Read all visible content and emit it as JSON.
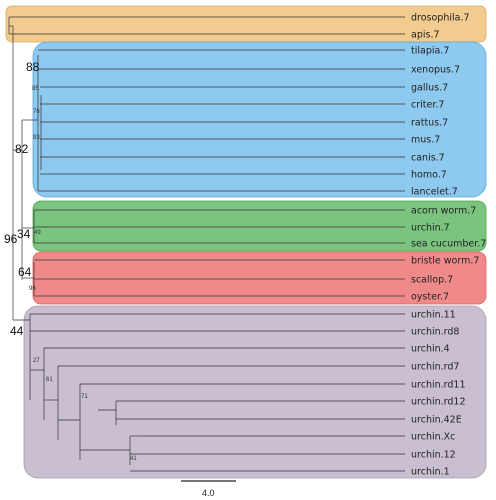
{
  "groups": [
    {
      "id": "insects",
      "color": "#f2cc8f",
      "stroke": "#d9a860"
    },
    {
      "id": "deuterostomes",
      "color": "#8ec9ef",
      "stroke": "#5aa9de"
    },
    {
      "id": "ambulacraria",
      "color": "#7bc47f",
      "stroke": "#4fa654"
    },
    {
      "id": "lophotrochozoa",
      "color": "#f08a8a",
      "stroke": "#e06060"
    },
    {
      "id": "urchin-paralogs",
      "color": "#c9bfd0",
      "stroke": "#a89bb2"
    }
  ],
  "leaves": [
    {
      "label": "drosophila.7",
      "group": "insects"
    },
    {
      "label": "apis.7",
      "group": "insects"
    },
    {
      "label": "tilapia.7",
      "group": "deuterostomes"
    },
    {
      "label": "xenopus.7",
      "group": "deuterostomes"
    },
    {
      "label": "gallus.7",
      "group": "deuterostomes"
    },
    {
      "label": "criter.7",
      "group": "deuterostomes"
    },
    {
      "label": "rattus.7",
      "group": "deuterostomes"
    },
    {
      "label": "mus.7",
      "group": "deuterostomes"
    },
    {
      "label": "canis.7",
      "group": "deuterostomes"
    },
    {
      "label": "homo.7",
      "group": "deuterostomes"
    },
    {
      "label": "lancelet.7",
      "group": "deuterostomes"
    },
    {
      "label": "acorn worm.7",
      "group": "ambulacraria"
    },
    {
      "label": "urchin.7",
      "group": "ambulacraria"
    },
    {
      "label": "sea cucumber.7",
      "group": "ambulacraria"
    },
    {
      "label": "bristle worm.7",
      "group": "lophotrochozoa"
    },
    {
      "label": "scallop.7",
      "group": "lophotrochozoa"
    },
    {
      "label": "oyster.7",
      "group": "lophotrochozoa"
    },
    {
      "label": "urchin.11",
      "group": "urchin-paralogs"
    },
    {
      "label": "urchin.rd8",
      "group": "urchin-paralogs"
    },
    {
      "label": "urchin.4",
      "group": "urchin-paralogs"
    },
    {
      "label": "urchin.rd7",
      "group": "urchin-paralogs"
    },
    {
      "label": "urchin.rd11",
      "group": "urchin-paralogs"
    },
    {
      "label": "urchin.rd12",
      "group": "urchin-paralogs"
    },
    {
      "label": "urchin.42E",
      "group": "urchin-paralogs"
    },
    {
      "label": "urchin.Xc",
      "group": "urchin-paralogs"
    },
    {
      "label": "urchin.12",
      "group": "urchin-paralogs"
    },
    {
      "label": "urchin.1",
      "group": "urchin-paralogs"
    }
  ],
  "support_values": [
    {
      "value": "88",
      "size": "big"
    },
    {
      "value": "82",
      "size": "big"
    },
    {
      "value": "96",
      "size": "big"
    },
    {
      "value": "34",
      "size": "big"
    },
    {
      "value": "64",
      "size": "big"
    },
    {
      "value": "44",
      "size": "big"
    },
    {
      "value": "85",
      "size": "small"
    },
    {
      "value": "76",
      "size": "small"
    },
    {
      "value": "93",
      "size": "small"
    },
    {
      "value": "49",
      "size": "small"
    },
    {
      "value": "96",
      "size": "small"
    },
    {
      "value": "27",
      "size": "small"
    },
    {
      "value": "61",
      "size": "small"
    },
    {
      "value": "71",
      "size": "small"
    },
    {
      "value": "41",
      "size": "small"
    }
  ],
  "scale_bar": {
    "label": "4.0"
  }
}
